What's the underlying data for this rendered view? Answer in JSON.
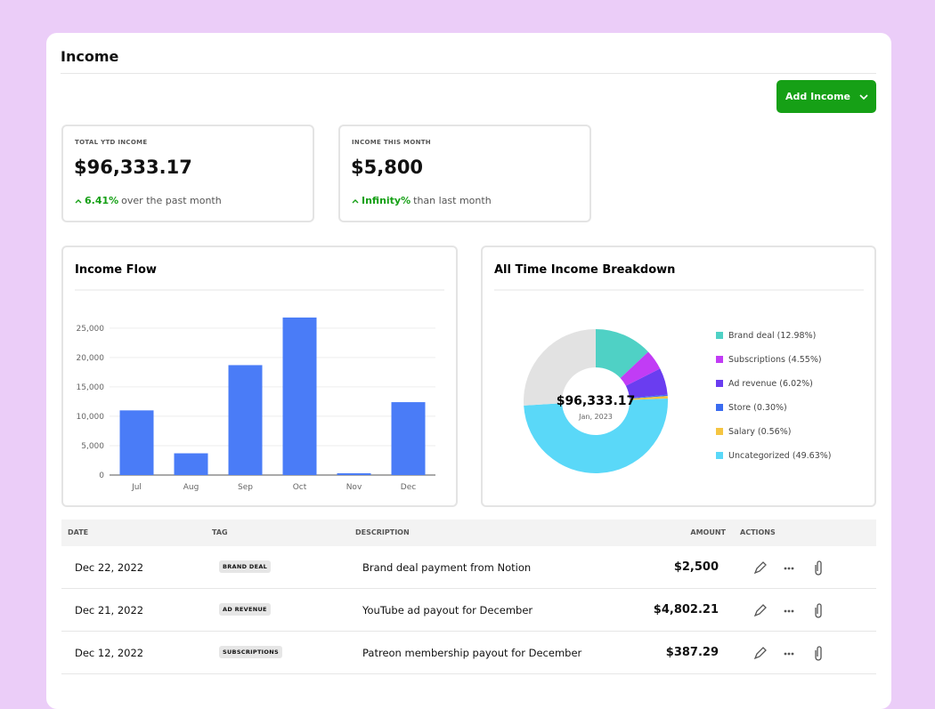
{
  "header": {
    "title": "Income",
    "button": "Add Income"
  },
  "stats": [
    {
      "label": "TOTAL YTD INCOME",
      "value": "$96,333.17",
      "change": "6.41%",
      "note": "over the past month"
    },
    {
      "label": "INCOME THIS MONTH",
      "value": "$5,800",
      "change": "Infinity%",
      "note": "than last month"
    }
  ],
  "charts": {
    "chart_data": [
      {
        "type": "bar",
        "title": "Income Flow",
        "categories": [
          "Jul",
          "Aug",
          "Sep",
          "Oct",
          "Nov",
          "Dec"
        ],
        "values": [
          11000,
          3700,
          18700,
          26800,
          300,
          12400
        ],
        "color": "#4a7cf7",
        "ylim": [
          0,
          28000
        ],
        "yticks": [
          0,
          {
            "value": 5000,
            "label": "5,000"
          },
          {
            "value": 10000,
            "label": "10,000"
          },
          {
            "value": 15000,
            "label": "15,000"
          },
          {
            "value": 20000,
            "label": "20,000"
          },
          {
            "value": 25000,
            "label": "25,000"
          }
        ],
        "grid": true
      },
      {
        "type": "pie",
        "title": "All Time Income Breakdown",
        "center_value": "$96,333.17",
        "center_label": "Jan, 2023",
        "categories": [
          "Brand deal (12.98%)",
          "Subscriptions (4.55%)",
          "Ad revenue (6.02%)",
          "Store (0.30%)",
          "Salary (0.56%)",
          "Uncategorized (49.63%)",
          null
        ],
        "values": [
          12.98,
          4.55,
          6.02,
          0.3,
          0.56,
          49.63,
          25.96
        ],
        "colors": [
          "#4fd1c5",
          "#c13cf5",
          "#6a3df0",
          "#3b6cf0",
          "#f5c542",
          "#5ad8f8",
          "#e2e2e2"
        ],
        "legend": "right"
      }
    ]
  },
  "table": {
    "headers": [
      "DATE",
      "TAG",
      "DESCRIPTION",
      "AMOUNT",
      "ACTIONS"
    ],
    "rows": [
      [
        "Dec 22, 2022",
        "BRAND DEAL",
        "Brand deal payment from Notion",
        "$2,500"
      ],
      [
        "Dec 21, 2022",
        "AD REVENUE",
        "YouTube ad payout for December",
        "$4,802.21"
      ],
      [
        "Dec 12, 2022",
        "SUBSCRIPTIONS",
        "Patreon membership payout for December",
        "$387.29"
      ]
    ]
  }
}
